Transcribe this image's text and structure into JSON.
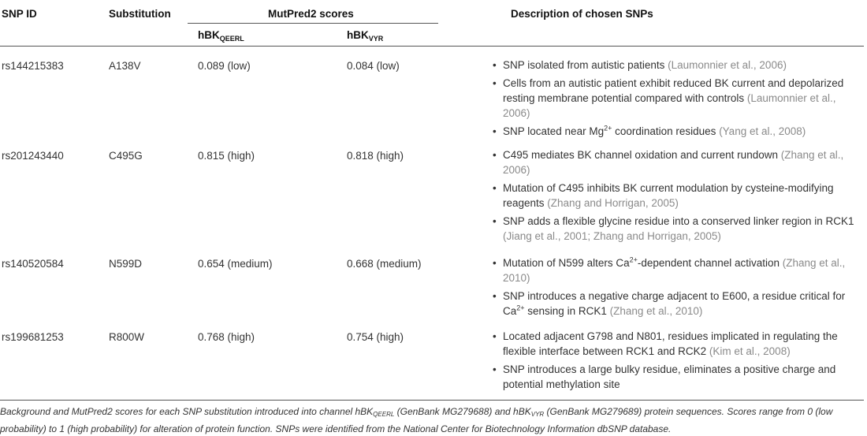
{
  "headers": {
    "snp_id": "SNP ID",
    "substitution": "Substitution",
    "mutpred": "MutPred2 scores",
    "hbk1_base": "hBK",
    "hbk1_sub": "QEERL",
    "hbk2_base": "hBK",
    "hbk2_sub": "VYR",
    "description": "Description of chosen SNPs"
  },
  "rows": [
    {
      "id": "rs144215383",
      "substitution": "A138V",
      "score1": "0.089 (low)",
      "score2": "0.084 (low)",
      "bullets": [
        [
          {
            "t": "SNP isolated from autistic patients "
          },
          {
            "t": "(Laumonnier et al., 2006)",
            "ref": true
          }
        ],
        [
          {
            "t": "Cells from an autistic patient exhibit reduced BK current and depolarized resting membrane potential compared with controls "
          },
          {
            "t": "(Laumonnier et al., 2006)",
            "ref": true
          }
        ],
        [
          {
            "t": "SNP located near Mg"
          },
          {
            "t": "2+",
            "sup": true
          },
          {
            "t": " coordination residues "
          },
          {
            "t": "(Yang et al., 2008)",
            "ref": true
          }
        ]
      ]
    },
    {
      "id": "rs201243440",
      "substitution": "C495G",
      "score1": "0.815 (high)",
      "score2": "0.818 (high)",
      "bullets": [
        [
          {
            "t": "C495 mediates BK channel oxidation and current rundown "
          },
          {
            "t": "(Zhang et al., 2006)",
            "ref": true
          }
        ],
        [
          {
            "t": "Mutation of C495 inhibits BK current modulation by cysteine-modifying reagents "
          },
          {
            "t": "(Zhang and Horrigan, 2005)",
            "ref": true
          }
        ],
        [
          {
            "t": "SNP adds a flexible glycine residue into a conserved linker region in RCK1 "
          },
          {
            "t": "(Jiang et al., 2001; Zhang and Horrigan, 2005)",
            "ref": true
          }
        ]
      ]
    },
    {
      "id": "rs140520584",
      "substitution": "N599D",
      "score1": "0.654 (medium)",
      "score2": "0.668 (medium)",
      "bullets": [
        [
          {
            "t": "Mutation of N599 alters Ca"
          },
          {
            "t": "2+",
            "sup": true
          },
          {
            "t": "-dependent channel activation "
          },
          {
            "t": "(Zhang et al., 2010)",
            "ref": true
          }
        ],
        [
          {
            "t": "SNP introduces a negative charge adjacent to E600, a residue critical for Ca"
          },
          {
            "t": "2+",
            "sup": true
          },
          {
            "t": " sensing in RCK1 "
          },
          {
            "t": "(Zhang et al., 2010)",
            "ref": true
          }
        ]
      ]
    },
    {
      "id": "rs199681253",
      "substitution": "R800W",
      "score1": "0.768 (high)",
      "score2": "0.754 (high)",
      "bullets": [
        [
          {
            "t": "Located adjacent G798 and N801, residues implicated in regulating the flexible interface between RCK1 and RCK2 "
          },
          {
            "t": "(Kim et al., 2008)",
            "ref": true
          }
        ],
        [
          {
            "t": "SNP introduces a large bulky residue, eliminates a positive charge and potential methylation site"
          }
        ]
      ]
    }
  ],
  "caption": [
    {
      "t": "Background and MutPred2 scores for each SNP substitution introduced into channel hBK"
    },
    {
      "t": "QEERL",
      "sub": true
    },
    {
      "t": " (GenBank MG279688) and hBK"
    },
    {
      "t": "VYR",
      "sub": true
    },
    {
      "t": " (GenBank MG279689) protein sequences. Scores range from 0 (low probability) to 1 (high probability) for alteration of protein function. SNPs were identified from the National Center for Biotechnology Information dbSNP database."
    }
  ]
}
